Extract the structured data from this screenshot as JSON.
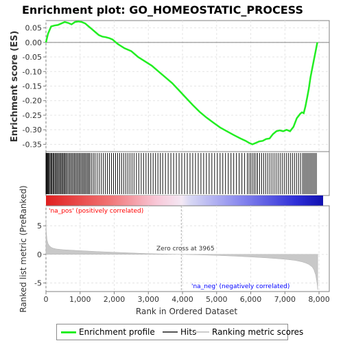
{
  "chart_data": {
    "type": "line",
    "title": "Enrichment plot: GO_HOMEOSTATIC_PROCESS",
    "top_panel": {
      "ylabel": "Enrichment score (ES)",
      "ylim": [
        -0.375,
        0.075
      ],
      "yticks": [
        0.05,
        0.0,
        -0.05,
        -0.1,
        -0.15,
        -0.2,
        -0.25,
        -0.3,
        -0.35
      ],
      "ytick_labels": [
        "0.05",
        "0.00",
        "-0.05",
        "-0.10",
        "-0.15",
        "-0.20",
        "-0.25",
        "-0.30",
        "-0.35"
      ],
      "grid": true,
      "series": [
        {
          "name": "Enrichment profile",
          "color": "#22ee22",
          "x": [
            0,
            60,
            150,
            250,
            350,
            450,
            550,
            650,
            750,
            850,
            950,
            1050,
            1150,
            1250,
            1350,
            1450,
            1550,
            1650,
            1750,
            1850,
            1950,
            2100,
            2300,
            2500,
            2700,
            2900,
            3100,
            3300,
            3500,
            3700,
            3900,
            4100,
            4300,
            4500,
            4700,
            4900,
            5100,
            5300,
            5500,
            5700,
            5850,
            5950,
            6050,
            6150,
            6250,
            6350,
            6450,
            6550,
            6650,
            6750,
            6850,
            6950,
            7050,
            7150,
            7250,
            7350,
            7450,
            7500,
            7550,
            7600,
            7650,
            7700,
            7750,
            7800,
            7850,
            7900,
            7950
          ],
          "y": [
            0.0,
            0.03,
            0.055,
            0.058,
            0.06,
            0.065,
            0.07,
            0.067,
            0.062,
            0.07,
            0.072,
            0.07,
            0.065,
            0.055,
            0.045,
            0.035,
            0.025,
            0.02,
            0.018,
            0.015,
            0.01,
            -0.005,
            -0.02,
            -0.03,
            -0.05,
            -0.065,
            -0.08,
            -0.1,
            -0.12,
            -0.14,
            -0.165,
            -0.19,
            -0.215,
            -0.238,
            -0.258,
            -0.275,
            -0.292,
            -0.305,
            -0.318,
            -0.33,
            -0.338,
            -0.345,
            -0.35,
            -0.345,
            -0.34,
            -0.338,
            -0.332,
            -0.33,
            -0.315,
            -0.305,
            -0.302,
            -0.305,
            -0.3,
            -0.305,
            -0.29,
            -0.26,
            -0.245,
            -0.24,
            -0.243,
            -0.22,
            -0.19,
            -0.16,
            -0.12,
            -0.09,
            -0.06,
            -0.03,
            0.0
          ]
        }
      ]
    },
    "hits_panel": {
      "series_name": "Hits",
      "hit_ranks": [
        0,
        15,
        30,
        48,
        70,
        95,
        120,
        150,
        175,
        205,
        230,
        262,
        290,
        320,
        348,
        380,
        410,
        440,
        470,
        500,
        530,
        560,
        590,
        625,
        660,
        695,
        730,
        765,
        800,
        835,
        870,
        905,
        940,
        975,
        1010,
        1045,
        1080,
        1115,
        1150,
        1185,
        1220,
        1255,
        1290,
        1340,
        1390,
        1440,
        1500,
        1560,
        1620,
        1680,
        1740,
        1800,
        1860,
        1920,
        1980,
        2040,
        2100,
        2160,
        2220,
        2280,
        2340,
        2400,
        2460,
        2520,
        2580,
        2650,
        2720,
        2790,
        2860,
        2930,
        3000,
        3070,
        3140,
        3210,
        3280,
        3350,
        3420,
        3500,
        3580,
        3660,
        3740,
        3820,
        3900,
        3980,
        4060,
        4140,
        4220,
        4300,
        4380,
        4460,
        4540,
        4620,
        4700,
        4780,
        4860,
        4940,
        5020,
        5100,
        5180,
        5260,
        5340,
        5420,
        5500,
        5580,
        5660,
        5740,
        5820,
        5900,
        5950,
        6000,
        6050,
        6100,
        6150,
        6200,
        6260,
        6320,
        6380,
        6440,
        6500,
        6560,
        6620,
        6680,
        6740,
        6800,
        6860,
        6920,
        6980,
        7040,
        7100,
        7160,
        7220,
        7280,
        7340,
        7400,
        7460,
        7520,
        7560,
        7600,
        7640,
        7680,
        7720,
        7760,
        7800,
        7840,
        7880,
        7920
      ]
    },
    "bottom_panel": {
      "ylabel": "Ranked list metric (PreRanked)",
      "xlabel": "Rank in Ordered Dataset",
      "series_name": "Ranking metric scores",
      "ylim": [
        -6.5,
        8.5
      ],
      "yticks": [
        5,
        0,
        -5
      ],
      "ytick_labels": [
        "5",
        "0",
        "-5"
      ],
      "xlim": [
        0,
        8300
      ],
      "xticks": [
        0,
        1000,
        2000,
        3000,
        4000,
        5000,
        6000,
        7000,
        8000
      ],
      "xtick_labels": [
        "0",
        "1,000",
        "2,000",
        "3,000",
        "4,000",
        "5,000",
        "6,000",
        "7,000",
        "8,000"
      ],
      "metric_x": [
        0,
        10,
        30,
        60,
        100,
        150,
        200,
        300,
        500,
        1000,
        1500,
        2000,
        2500,
        3000,
        3500,
        3965,
        4500,
        5000,
        5500,
        6000,
        6500,
        7000,
        7300,
        7500,
        7600,
        7700,
        7800,
        7850,
        7900,
        7930,
        7950,
        7960
      ],
      "metric_y": [
        6.0,
        4.0,
        2.6,
        1.9,
        1.5,
        1.25,
        1.1,
        0.95,
        0.82,
        0.65,
        0.5,
        0.38,
        0.26,
        0.14,
        0.05,
        0.0,
        -0.08,
        -0.18,
        -0.3,
        -0.45,
        -0.62,
        -0.85,
        -1.05,
        -1.3,
        -1.5,
        -1.75,
        -2.2,
        -2.7,
        -3.6,
        -4.6,
        -5.5,
        -6.2
      ],
      "zero_cross_label": "Zero cross at 3965",
      "zero_cross_x": 3965,
      "pos_label": "'na_pos' (positively correlated)",
      "neg_label": "'na_neg' (negatively correlated)",
      "pos_color": "#ff0000",
      "neg_color": "#0000ff"
    },
    "legend": {
      "items": [
        {
          "label": "Enrichment profile",
          "color": "#22ee22"
        },
        {
          "label": "Hits",
          "color": "#555555"
        },
        {
          "label": "Ranking metric scores",
          "color": "#cccccc"
        }
      ]
    }
  }
}
